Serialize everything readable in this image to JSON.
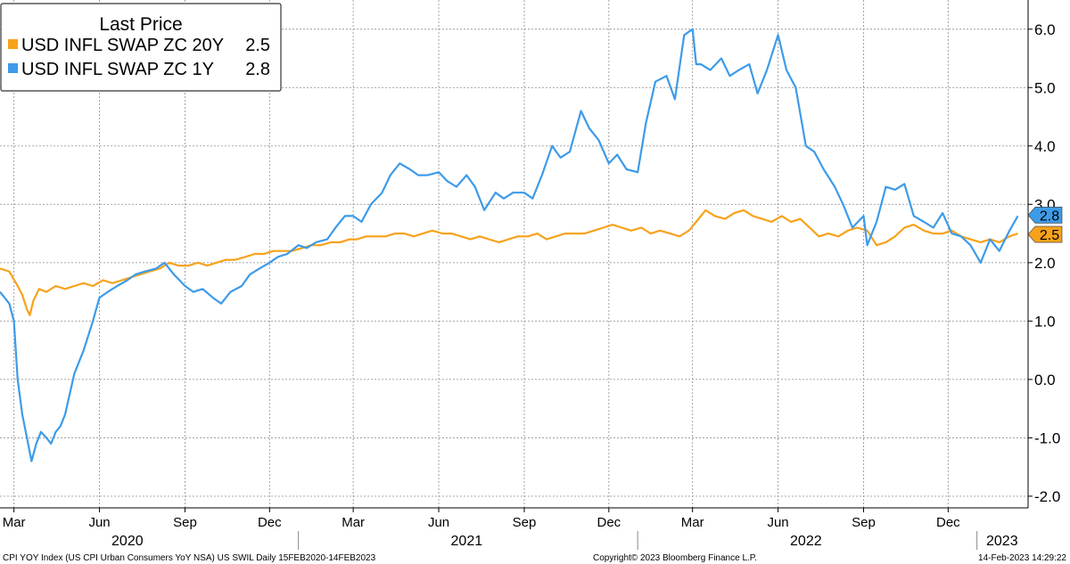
{
  "chart_data": {
    "type": "line",
    "legend": {
      "title": "Last Price",
      "placement": "top-left",
      "entries": [
        {
          "label": "USD INFL SWAP ZC 20Y",
          "last": "2.5",
          "color": "#f7a21b"
        },
        {
          "label": "USD INFL SWAP ZC 1Y",
          "last": "2.8",
          "color": "#3d9be9"
        }
      ]
    },
    "ylim": [
      -2.2,
      6.5
    ],
    "yticks": [
      -2.0,
      -1.0,
      0.0,
      1.0,
      2.0,
      3.0,
      4.0,
      5.0,
      6.0
    ],
    "ytick_labels": [
      "-2.0",
      "-1.0",
      "0.0",
      "1.0",
      "2.0",
      "3.0",
      "4.0",
      "5.0",
      "6.0"
    ],
    "y_axis_side": "right",
    "grid": true,
    "xlim": [
      "2020-02-15",
      "2023-02-25"
    ],
    "month_ticks": [
      {
        "date": "2020-03-01",
        "label": "Mar"
      },
      {
        "date": "2020-06-01",
        "label": "Jun"
      },
      {
        "date": "2020-09-01",
        "label": "Sep"
      },
      {
        "date": "2020-12-01",
        "label": "Dec"
      },
      {
        "date": "2021-03-01",
        "label": "Mar"
      },
      {
        "date": "2021-06-01",
        "label": "Jun"
      },
      {
        "date": "2021-09-01",
        "label": "Sep"
      },
      {
        "date": "2021-12-01",
        "label": "Dec"
      },
      {
        "date": "2022-03-01",
        "label": "Mar"
      },
      {
        "date": "2022-06-01",
        "label": "Jun"
      },
      {
        "date": "2022-09-01",
        "label": "Sep"
      },
      {
        "date": "2022-12-01",
        "label": "Dec"
      }
    ],
    "year_labels": [
      {
        "center": "2020-07-01",
        "label": "2020"
      },
      {
        "center": "2021-07-01",
        "label": "2021"
      },
      {
        "center": "2022-07-01",
        "label": "2022"
      },
      {
        "center": "2023-01-28",
        "label": "2023"
      }
    ],
    "year_boundaries": [
      "2021-01-01",
      "2022-01-01",
      "2023-01-01"
    ],
    "end_markers": [
      {
        "label": "2.8",
        "value": 2.8,
        "color": "#3d9be9"
      },
      {
        "label": "2.5",
        "value": 2.5,
        "color": "#f7a21b"
      }
    ],
    "series": [
      {
        "name": "USD INFL SWAP ZC 20Y",
        "color": "#f7a21b",
        "x": [
          "2020-02-15",
          "2020-02-25",
          "2020-03-05",
          "2020-03-10",
          "2020-03-15",
          "2020-03-18",
          "2020-03-22",
          "2020-03-28",
          "2020-04-05",
          "2020-04-15",
          "2020-04-25",
          "2020-05-05",
          "2020-05-15",
          "2020-05-25",
          "2020-06-05",
          "2020-06-15",
          "2020-06-25",
          "2020-07-05",
          "2020-07-15",
          "2020-07-25",
          "2020-08-05",
          "2020-08-15",
          "2020-08-25",
          "2020-09-05",
          "2020-09-15",
          "2020-09-25",
          "2020-10-05",
          "2020-10-15",
          "2020-10-25",
          "2020-11-05",
          "2020-11-15",
          "2020-11-25",
          "2020-12-05",
          "2020-12-15",
          "2020-12-25",
          "2021-01-05",
          "2021-01-15",
          "2021-01-25",
          "2021-02-05",
          "2021-02-15",
          "2021-02-25",
          "2021-03-05",
          "2021-03-15",
          "2021-03-25",
          "2021-04-05",
          "2021-04-15",
          "2021-04-25",
          "2021-05-05",
          "2021-05-15",
          "2021-05-25",
          "2021-06-05",
          "2021-06-15",
          "2021-06-25",
          "2021-07-05",
          "2021-07-15",
          "2021-07-25",
          "2021-08-05",
          "2021-08-15",
          "2021-08-25",
          "2021-09-05",
          "2021-09-15",
          "2021-09-25",
          "2021-10-05",
          "2021-10-15",
          "2021-10-25",
          "2021-11-05",
          "2021-11-15",
          "2021-11-25",
          "2021-12-05",
          "2021-12-15",
          "2021-12-25",
          "2022-01-05",
          "2022-01-15",
          "2022-01-25",
          "2022-02-05",
          "2022-02-15",
          "2022-02-25",
          "2022-03-05",
          "2022-03-15",
          "2022-03-25",
          "2022-04-05",
          "2022-04-15",
          "2022-04-25",
          "2022-05-05",
          "2022-05-15",
          "2022-05-25",
          "2022-06-05",
          "2022-06-15",
          "2022-06-25",
          "2022-07-05",
          "2022-07-15",
          "2022-07-25",
          "2022-08-05",
          "2022-08-15",
          "2022-08-25",
          "2022-09-05",
          "2022-09-15",
          "2022-09-25",
          "2022-10-05",
          "2022-10-15",
          "2022-10-25",
          "2022-11-05",
          "2022-11-15",
          "2022-11-25",
          "2022-12-05",
          "2022-12-15",
          "2022-12-25",
          "2023-01-05",
          "2023-01-15",
          "2023-01-25",
          "2023-02-05",
          "2023-02-14"
        ],
        "values": [
          1.9,
          1.85,
          1.6,
          1.45,
          1.2,
          1.1,
          1.35,
          1.55,
          1.5,
          1.6,
          1.55,
          1.6,
          1.65,
          1.6,
          1.7,
          1.65,
          1.7,
          1.75,
          1.8,
          1.85,
          1.9,
          2.0,
          1.95,
          1.95,
          2.0,
          1.95,
          2.0,
          2.05,
          2.05,
          2.1,
          2.15,
          2.15,
          2.2,
          2.2,
          2.2,
          2.25,
          2.3,
          2.3,
          2.35,
          2.35,
          2.4,
          2.4,
          2.45,
          2.45,
          2.45,
          2.5,
          2.5,
          2.45,
          2.5,
          2.55,
          2.5,
          2.5,
          2.45,
          2.4,
          2.45,
          2.4,
          2.35,
          2.4,
          2.45,
          2.45,
          2.5,
          2.4,
          2.45,
          2.5,
          2.5,
          2.5,
          2.55,
          2.6,
          2.65,
          2.6,
          2.55,
          2.6,
          2.5,
          2.55,
          2.5,
          2.45,
          2.55,
          2.7,
          2.9,
          2.8,
          2.75,
          2.85,
          2.9,
          2.8,
          2.75,
          2.7,
          2.8,
          2.7,
          2.75,
          2.6,
          2.45,
          2.5,
          2.45,
          2.55,
          2.6,
          2.55,
          2.3,
          2.35,
          2.45,
          2.6,
          2.65,
          2.55,
          2.5,
          2.5,
          2.55,
          2.45,
          2.4,
          2.35,
          2.4,
          2.35,
          2.45,
          2.5
        ]
      },
      {
        "name": "USD INFL SWAP ZC 1Y",
        "color": "#3d9be9",
        "x": [
          "2020-02-15",
          "2020-02-25",
          "2020-03-01",
          "2020-03-05",
          "2020-03-10",
          "2020-03-15",
          "2020-03-20",
          "2020-03-25",
          "2020-03-30",
          "2020-04-05",
          "2020-04-10",
          "2020-04-15",
          "2020-04-20",
          "2020-04-25",
          "2020-05-05",
          "2020-05-15",
          "2020-05-25",
          "2020-06-01",
          "2020-06-10",
          "2020-06-20",
          "2020-07-01",
          "2020-07-10",
          "2020-07-20",
          "2020-08-01",
          "2020-08-10",
          "2020-08-20",
          "2020-09-01",
          "2020-09-10",
          "2020-09-20",
          "2020-10-01",
          "2020-10-10",
          "2020-10-20",
          "2020-11-01",
          "2020-11-10",
          "2020-11-20",
          "2020-12-01",
          "2020-12-10",
          "2020-12-20",
          "2021-01-01",
          "2021-01-10",
          "2021-01-20",
          "2021-02-01",
          "2021-02-10",
          "2021-02-20",
          "2021-03-01",
          "2021-03-10",
          "2021-03-20",
          "2021-04-01",
          "2021-04-10",
          "2021-04-20",
          "2021-05-01",
          "2021-05-10",
          "2021-05-20",
          "2021-06-01",
          "2021-06-10",
          "2021-06-20",
          "2021-07-01",
          "2021-07-10",
          "2021-07-20",
          "2021-08-01",
          "2021-08-10",
          "2021-08-20",
          "2021-09-01",
          "2021-09-10",
          "2021-09-20",
          "2021-10-01",
          "2021-10-10",
          "2021-10-20",
          "2021-11-01",
          "2021-11-10",
          "2021-11-20",
          "2021-12-01",
          "2021-12-10",
          "2021-12-20",
          "2022-01-01",
          "2022-01-10",
          "2022-01-20",
          "2022-02-01",
          "2022-02-10",
          "2022-02-20",
          "2022-03-01",
          "2022-03-05",
          "2022-03-10",
          "2022-03-20",
          "2022-04-01",
          "2022-04-10",
          "2022-04-20",
          "2022-05-01",
          "2022-05-10",
          "2022-05-20",
          "2022-06-01",
          "2022-06-10",
          "2022-06-20",
          "2022-07-01",
          "2022-07-10",
          "2022-07-20",
          "2022-08-01",
          "2022-08-10",
          "2022-08-20",
          "2022-09-01",
          "2022-09-05",
          "2022-09-15",
          "2022-09-25",
          "2022-10-05",
          "2022-10-15",
          "2022-10-25",
          "2022-11-05",
          "2022-11-15",
          "2022-11-25",
          "2022-12-05",
          "2022-12-15",
          "2022-12-25",
          "2023-01-05",
          "2023-01-15",
          "2023-01-25",
          "2023-02-05",
          "2023-02-14"
        ],
        "values": [
          1.5,
          1.3,
          1.0,
          0.0,
          -0.6,
          -1.0,
          -1.4,
          -1.1,
          -0.9,
          -1.0,
          -1.1,
          -0.9,
          -0.8,
          -0.6,
          0.1,
          0.5,
          1.0,
          1.4,
          1.5,
          1.6,
          1.7,
          1.8,
          1.85,
          1.9,
          2.0,
          1.8,
          1.6,
          1.5,
          1.55,
          1.4,
          1.3,
          1.5,
          1.6,
          1.8,
          1.9,
          2.0,
          2.1,
          2.15,
          2.3,
          2.25,
          2.35,
          2.4,
          2.6,
          2.8,
          2.8,
          2.7,
          3.0,
          3.2,
          3.5,
          3.7,
          3.6,
          3.5,
          3.5,
          3.55,
          3.4,
          3.3,
          3.5,
          3.3,
          2.9,
          3.2,
          3.1,
          3.2,
          3.2,
          3.1,
          3.5,
          4.0,
          3.8,
          3.9,
          4.6,
          4.3,
          4.1,
          3.7,
          3.85,
          3.6,
          3.55,
          4.4,
          5.1,
          5.2,
          4.8,
          5.9,
          6.0,
          5.4,
          5.4,
          5.3,
          5.5,
          5.2,
          5.3,
          5.4,
          4.9,
          5.3,
          5.9,
          5.3,
          5.0,
          4.0,
          3.9,
          3.6,
          3.3,
          3.0,
          2.6,
          2.8,
          2.3,
          2.7,
          3.3,
          3.25,
          3.35,
          2.8,
          2.7,
          2.6,
          2.85,
          2.5,
          2.45,
          2.3,
          2.0,
          2.4,
          2.2,
          2.55,
          2.8
        ]
      }
    ]
  },
  "footer": {
    "source": "CPI YOY Index (US CPI Urban Consumers YoY NSA) US SWIL  Daily 15FEB2020-14FEB2023",
    "copyright": "Copyright© 2023 Bloomberg Finance L.P.",
    "timestamp": "14-Feb-2023 14:29:22"
  }
}
